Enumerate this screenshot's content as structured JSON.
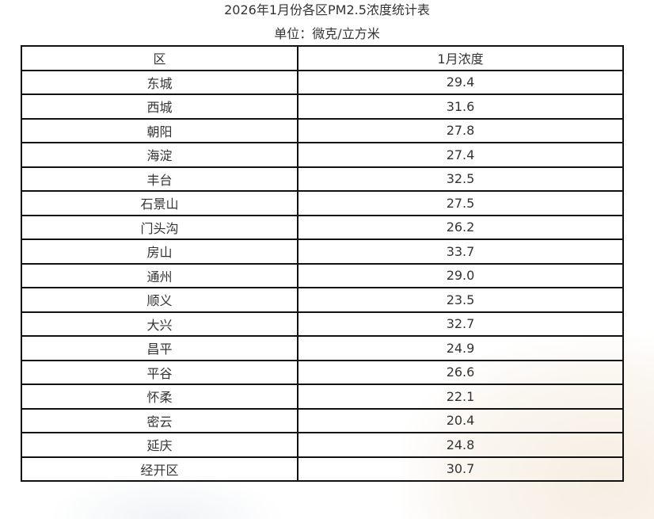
{
  "title": "2026年1月份各区PM2.5浓度统计表",
  "unit": "单位：微克/立方米",
  "table": {
    "headers": [
      "区",
      "1月浓度"
    ],
    "rows": [
      [
        "东城",
        "29.4"
      ],
      [
        "西城",
        "31.6"
      ],
      [
        "朝阳",
        "27.8"
      ],
      [
        "海淀",
        "27.4"
      ],
      [
        "丰台",
        "32.5"
      ],
      [
        "石景山",
        "27.5"
      ],
      [
        "门头沟",
        "26.2"
      ],
      [
        "房山",
        "33.7"
      ],
      [
        "通州",
        "29.0"
      ],
      [
        "顺义",
        "23.5"
      ],
      [
        "大兴",
        "32.7"
      ],
      [
        "昌平",
        "24.9"
      ],
      [
        "平谷",
        "26.6"
      ],
      [
        "怀柔",
        "22.1"
      ],
      [
        "密云",
        "20.4"
      ],
      [
        "延庆",
        "24.8"
      ],
      [
        "经开区",
        "30.7"
      ]
    ]
  }
}
